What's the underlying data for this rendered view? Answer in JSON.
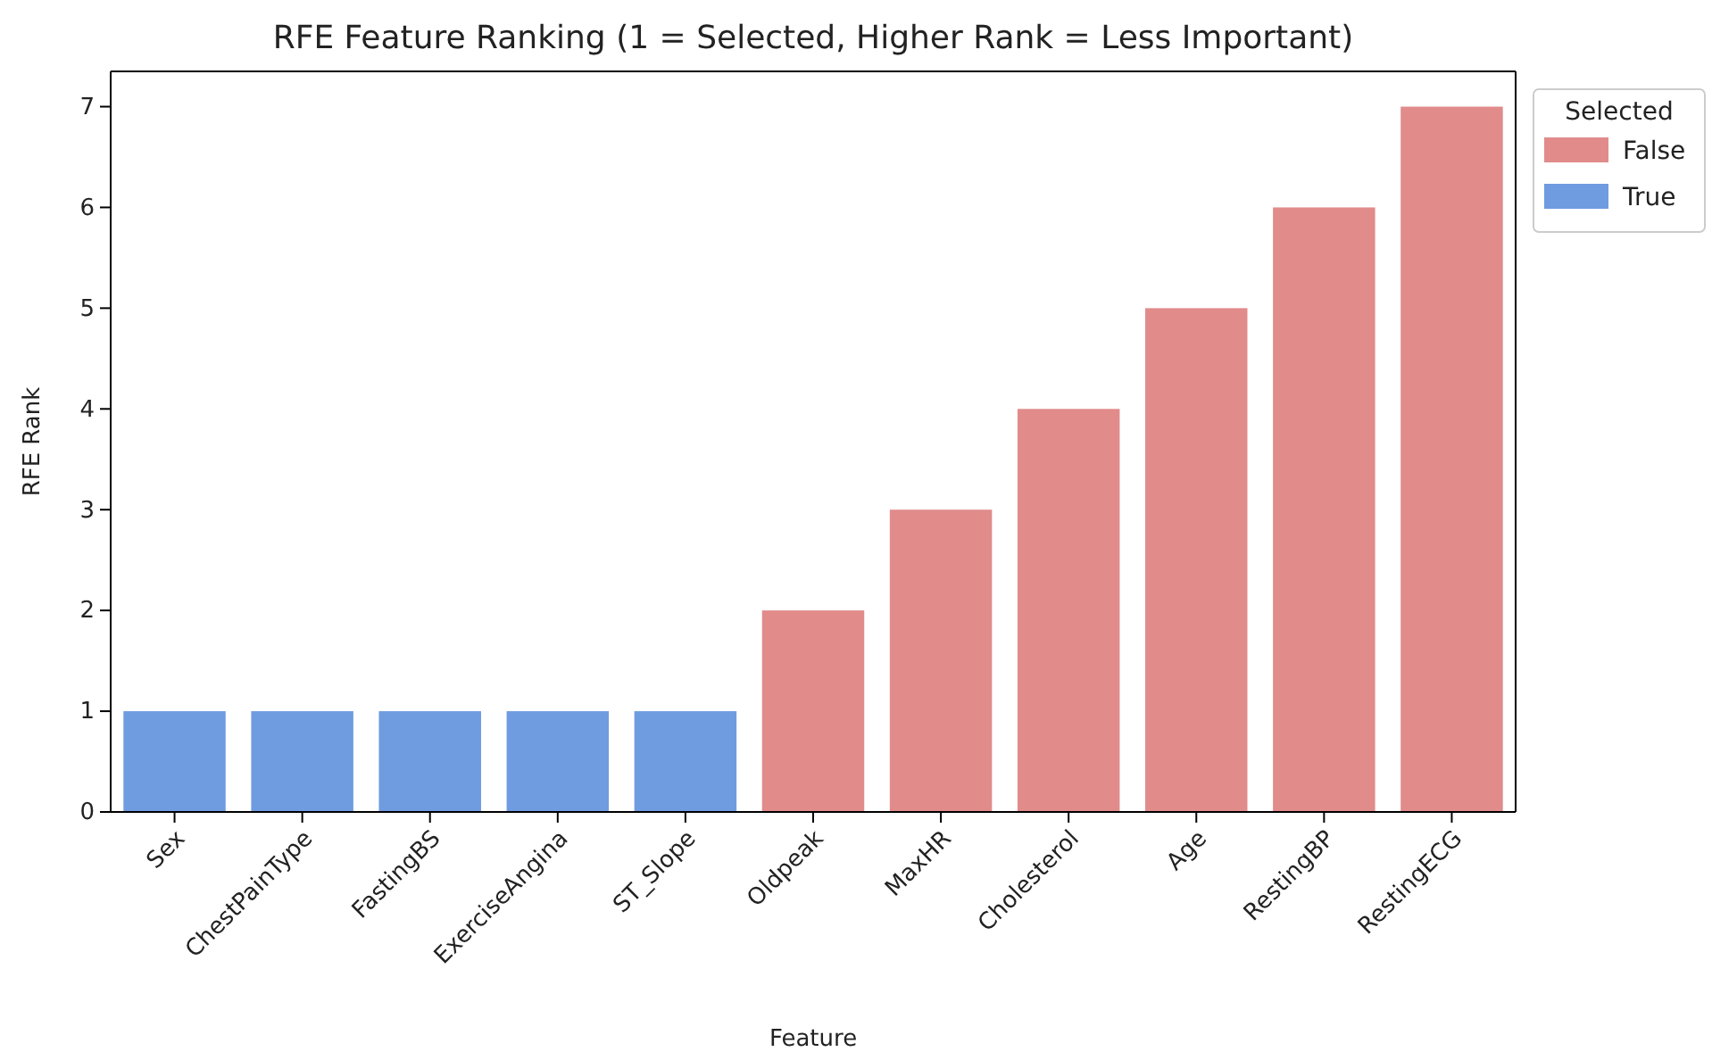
{
  "chart_data": {
    "type": "bar",
    "title": "RFE Feature Ranking (1 = Selected, Higher Rank = Less Important)",
    "xlabel": "Feature",
    "ylabel": "RFE Rank",
    "legend_title": "Selected",
    "categories": [
      "Sex",
      "ChestPainType",
      "FastingBS",
      "ExerciseAngina",
      "ST_Slope",
      "Oldpeak",
      "MaxHR",
      "Cholesterol",
      "Age",
      "RestingBP",
      "RestingECG"
    ],
    "series": [
      {
        "name": "False",
        "color": "#e18b8b",
        "values": [
          null,
          null,
          null,
          null,
          null,
          2,
          3,
          4,
          5,
          6,
          7
        ]
      },
      {
        "name": "True",
        "color": "#6f9be0",
        "values": [
          1,
          1,
          1,
          1,
          1,
          null,
          null,
          null,
          null,
          null,
          null
        ]
      }
    ],
    "ylim": [
      0,
      7.35
    ],
    "yticks": [
      0,
      1,
      2,
      3,
      4,
      5,
      6,
      7
    ],
    "grid": false,
    "legend": "right"
  }
}
